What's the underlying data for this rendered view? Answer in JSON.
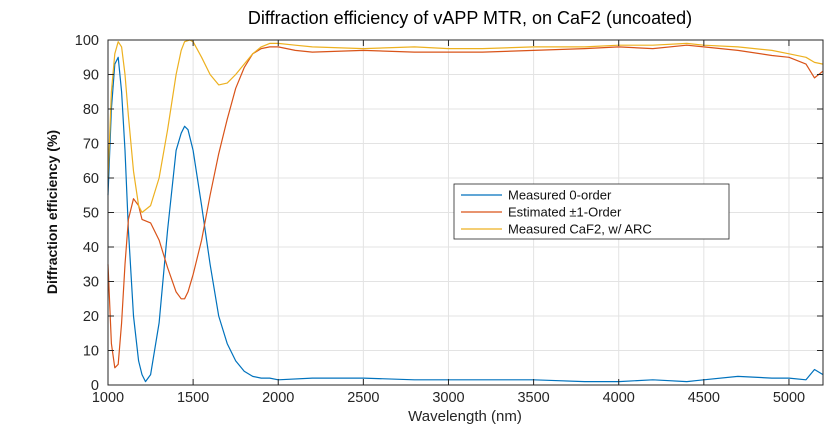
{
  "chart_data": {
    "type": "line",
    "title": "Diffraction efficiency of vAPP MTR, on CaF2 (uncoated)",
    "xlabel": "Wavelength (nm)",
    "ylabel": "Diffraction efficiency (%)",
    "xlim": [
      1000,
      5200
    ],
    "ylim": [
      0,
      100
    ],
    "grid": true,
    "legend_location": "center-right",
    "xticks": [
      1000,
      1500,
      2000,
      2500,
      3000,
      3500,
      4000,
      4500,
      5000
    ],
    "yticks": [
      0,
      10,
      20,
      30,
      40,
      50,
      60,
      70,
      80,
      90,
      100
    ],
    "series": [
      {
        "name": "Measured 0-order",
        "color": "#0072bd",
        "x": [
          1000,
          1020,
          1040,
          1060,
          1080,
          1100,
          1120,
          1150,
          1180,
          1200,
          1220,
          1250,
          1300,
          1350,
          1400,
          1430,
          1450,
          1470,
          1500,
          1550,
          1600,
          1650,
          1700,
          1750,
          1800,
          1850,
          1900,
          1950,
          2000,
          2200,
          2500,
          2800,
          3000,
          3500,
          3800,
          4000,
          4200,
          4400,
          4500,
          4700,
          4900,
          5000,
          5100,
          5150,
          5200
        ],
        "y": [
          55,
          80,
          93,
          95,
          85,
          68,
          45,
          20,
          7,
          3,
          1,
          3,
          18,
          45,
          68,
          73,
          75,
          74,
          68,
          52,
          35,
          20,
          12,
          7,
          4,
          2.5,
          2,
          2,
          1.5,
          2,
          2,
          1.5,
          1.5,
          1.5,
          1,
          1,
          1.5,
          1,
          1.5,
          2.5,
          2,
          2,
          1.5,
          4.5,
          3
        ]
      },
      {
        "name": "Estimated ±1-Order",
        "color": "#d95319",
        "x": [
          1000,
          1020,
          1040,
          1060,
          1080,
          1100,
          1120,
          1150,
          1180,
          1200,
          1250,
          1300,
          1350,
          1400,
          1430,
          1450,
          1470,
          1500,
          1550,
          1600,
          1650,
          1700,
          1750,
          1800,
          1850,
          1900,
          1950,
          2000,
          2100,
          2200,
          2500,
          2800,
          3000,
          3200,
          3500,
          3800,
          4000,
          4200,
          4400,
          4500,
          4700,
          4900,
          5000,
          5100,
          5150,
          5200
        ],
        "y": [
          35,
          12,
          5,
          6,
          18,
          35,
          48,
          54,
          52,
          48,
          47,
          42,
          34,
          27,
          25,
          25,
          27,
          32,
          42,
          55,
          67,
          77,
          86,
          92,
          96,
          97.5,
          98,
          98,
          97,
          96.5,
          97,
          96.5,
          96.5,
          96.5,
          97,
          97.5,
          98,
          97.5,
          98.5,
          98,
          97,
          95.5,
          95,
          93,
          89,
          91
        ]
      },
      {
        "name": "Measured CaF2, w/ ARC",
        "color": "#edb120",
        "x": [
          1000,
          1020,
          1040,
          1060,
          1080,
          1100,
          1120,
          1150,
          1180,
          1200,
          1250,
          1300,
          1350,
          1400,
          1430,
          1450,
          1480,
          1500,
          1550,
          1600,
          1650,
          1700,
          1750,
          1800,
          1850,
          1900,
          1950,
          2000,
          2100,
          2200,
          2500,
          2800,
          3000,
          3200,
          3500,
          3800,
          4000,
          4200,
          4400,
          4500,
          4700,
          4900,
          5000,
          5100,
          5150,
          5200
        ],
        "y": [
          60,
          85,
          96,
          99.5,
          98,
          90,
          78,
          62,
          52,
          50,
          52,
          60,
          74,
          90,
          97,
          99.5,
          100,
          99.5,
          95,
          90,
          87,
          87.5,
          90,
          93,
          96,
          98,
          99,
          99,
          98.5,
          98,
          97.5,
          98,
          97.5,
          97.5,
          98,
          98,
          98.5,
          98.5,
          99,
          98.5,
          98,
          97,
          96,
          95,
          93.5,
          93
        ]
      }
    ]
  }
}
